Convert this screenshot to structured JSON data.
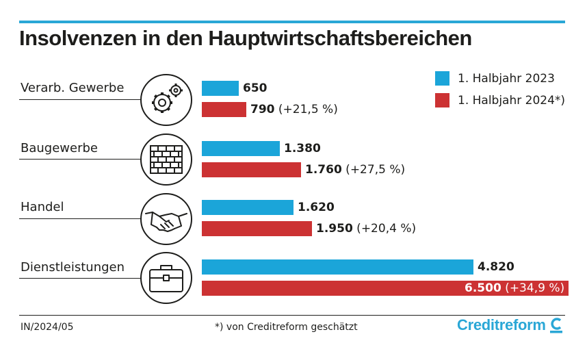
{
  "header": {
    "title": "Insolvenzen in den Hauptwirtschaftsbereichen"
  },
  "colors": {
    "accent": "#2aa7d6",
    "series_2023": "#1ba5d9",
    "series_2024": "#cc3233"
  },
  "chart_data": {
    "type": "bar",
    "orientation": "horizontal",
    "title": "Insolvenzen in den Hauptwirtschaftsbereichen",
    "categories": [
      "Verarb. Gewerbe",
      "Baugewerbe",
      "Handel",
      "Dienstleistungen"
    ],
    "icons": [
      "gears-icon",
      "brick-wall-icon",
      "handshake-icon",
      "briefcase-icon"
    ],
    "series": [
      {
        "name": "1. Halbjahr 2023",
        "values": [
          650,
          1380,
          1620,
          4820
        ],
        "labels": [
          "650",
          "1.380",
          "1.620",
          "4.820"
        ]
      },
      {
        "name": "1. Halbjahr 2024*)",
        "values": [
          790,
          1760,
          1950,
          6500
        ],
        "labels": [
          "790",
          "1.760",
          "1.950",
          "6.500"
        ],
        "changes": [
          "(+21,5 %)",
          "(+27,5 %)",
          "(+20,4 %)",
          "(+34,9 %)"
        ]
      }
    ],
    "legend": "top-right"
  },
  "footer": {
    "code": "IN/2024/05",
    "note": "*) von Creditreform geschätzt",
    "brand": "Creditreform"
  }
}
